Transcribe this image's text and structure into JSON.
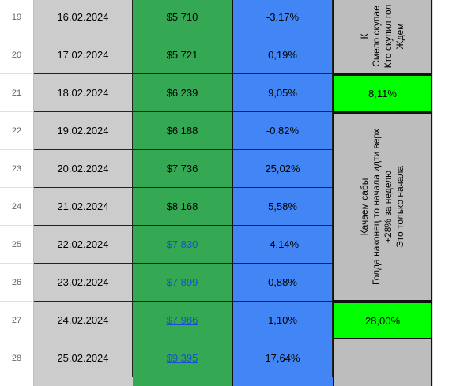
{
  "rows": [
    {
      "num": "19",
      "date": "16.02.2024",
      "price": "$5 710",
      "pct": "-3,17%",
      "linked": false
    },
    {
      "num": "20",
      "date": "17.02.2024",
      "price": "$5 721",
      "pct": "0,19%",
      "linked": false
    },
    {
      "num": "21",
      "date": "18.02.2024",
      "price": "$6 239",
      "pct": "9,05%",
      "linked": false
    },
    {
      "num": "22",
      "date": "19.02.2024",
      "price": "$6 188",
      "pct": "-0,82%",
      "linked": false
    },
    {
      "num": "23",
      "date": "20.02.2024",
      "price": "$7 736",
      "pct": "25,02%",
      "linked": false
    },
    {
      "num": "24",
      "date": "21.02.2024",
      "price": "$8 168",
      "pct": "5,58%",
      "linked": false
    },
    {
      "num": "25",
      "date": "22.02.2024",
      "price": "$7 830",
      "pct": "-4,14%",
      "linked": true
    },
    {
      "num": "26",
      "date": "23.02.2024",
      "price": "$7 899",
      "pct": "0,88%",
      "linked": true
    },
    {
      "num": "27",
      "date": "24.02.2024",
      "price": "$7 986",
      "pct": "1,10%",
      "linked": true
    },
    {
      "num": "28",
      "date": "25.02.2024",
      "price": "$9 395",
      "pct": "17,64%",
      "linked": true
    }
  ],
  "notes": {
    "top_note_lines": [
      "К",
      "Смело скупае",
      "Кто скупил гол",
      "Ждем"
    ],
    "week1_total": "8,11%",
    "mid_note_lines": [
      "Качаем сабы",
      "Голда наконец то начала идти верх",
      "+28% за неделю",
      "Это только начала"
    ],
    "week2_total": "28,00%"
  },
  "colors": {
    "date_bg": "#cccccc",
    "price_bg": "#34a853",
    "pct_bg": "#4285f4",
    "note_grey": "#bdbdbd",
    "note_green": "#00ff00",
    "link": "#1a4fd6"
  }
}
